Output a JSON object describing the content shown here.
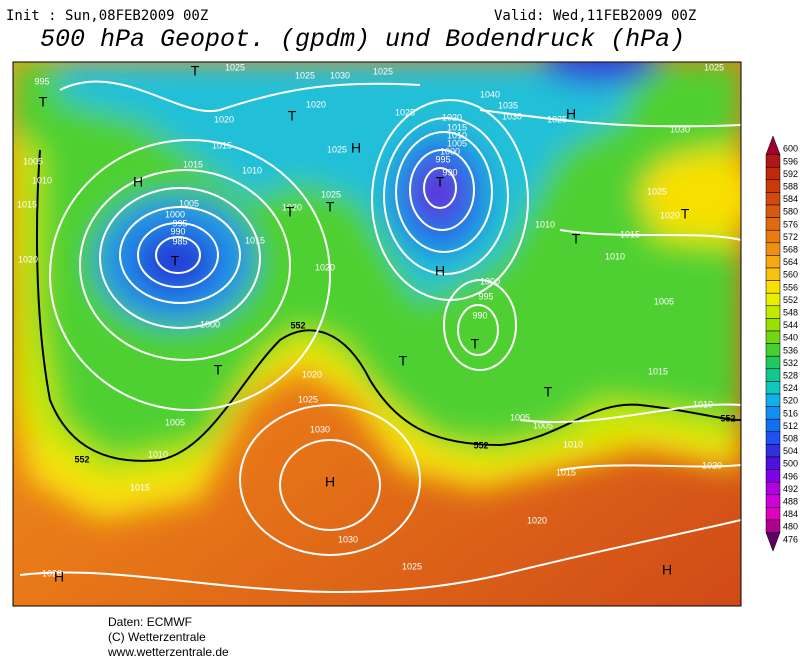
{
  "header": {
    "init": "Init : Sun,08FEB2009 00Z",
    "valid": "Valid: Wed,11FEB2009 00Z",
    "title": "500 hPa Geopot. (gpdm) und Bodendruck (hPa)"
  },
  "colorbar": {
    "levels": [
      600,
      596,
      592,
      588,
      584,
      580,
      576,
      572,
      568,
      564,
      560,
      556,
      552,
      548,
      544,
      540,
      536,
      532,
      528,
      524,
      520,
      516,
      512,
      508,
      504,
      500,
      496,
      492,
      488,
      484,
      480,
      476
    ],
    "colors": [
      "#a00030",
      "#b01818",
      "#c02808",
      "#c83a08",
      "#d04a10",
      "#d85a10",
      "#e06a10",
      "#e87c10",
      "#f09010",
      "#f8a810",
      "#f8c010",
      "#f8e000",
      "#e8f000",
      "#c0e800",
      "#98e000",
      "#70d810",
      "#48d030",
      "#20c860",
      "#10c890",
      "#10c8c0",
      "#10b0e8",
      "#1090f0",
      "#1070f0",
      "#2050f0",
      "#3030e0",
      "#5010e0",
      "#8000e8",
      "#b000e0",
      "#d000d8",
      "#e000c0",
      "#b00090",
      "#600060"
    ]
  },
  "map": {
    "isobar_labels": [
      "995",
      "1025",
      "1025",
      "1030",
      "1025",
      "1040",
      "1035",
      "1030",
      "1025",
      "1030",
      "1025",
      "1020",
      "1020",
      "1015",
      "1015",
      "1010",
      "1005",
      "1010",
      "1015",
      "1020",
      "1005",
      "1000",
      "995",
      "990",
      "985",
      "1015",
      "1020",
      "1020",
      "1025",
      "1025",
      "1025",
      "1020",
      "1015",
      "1010",
      "1005",
      "1000",
      "995",
      "990",
      "1010",
      "1015",
      "1010",
      "1025",
      "1020",
      "1005",
      "1000",
      "995",
      "990",
      "1000",
      "1020",
      "1025",
      "1030",
      "1005",
      "1010",
      "1015",
      "1020",
      "1030",
      "1025",
      "1020",
      "1015",
      "1010",
      "1005",
      "1005",
      "1015",
      "1010",
      "1020"
    ],
    "centers": [
      "T",
      "T",
      "H",
      "T",
      "T",
      "T",
      "T",
      "H",
      "T",
      "H",
      "T",
      "T",
      "T",
      "T",
      "T",
      "H",
      "T",
      "H",
      "H",
      "H"
    ],
    "contour_labels": [
      "552",
      "552",
      "552",
      "552"
    ]
  },
  "footer": {
    "source": "Daten: ECMWF",
    "copyright": "(C) Wetterzentrale",
    "url": "www.wetterzentrale.de"
  }
}
